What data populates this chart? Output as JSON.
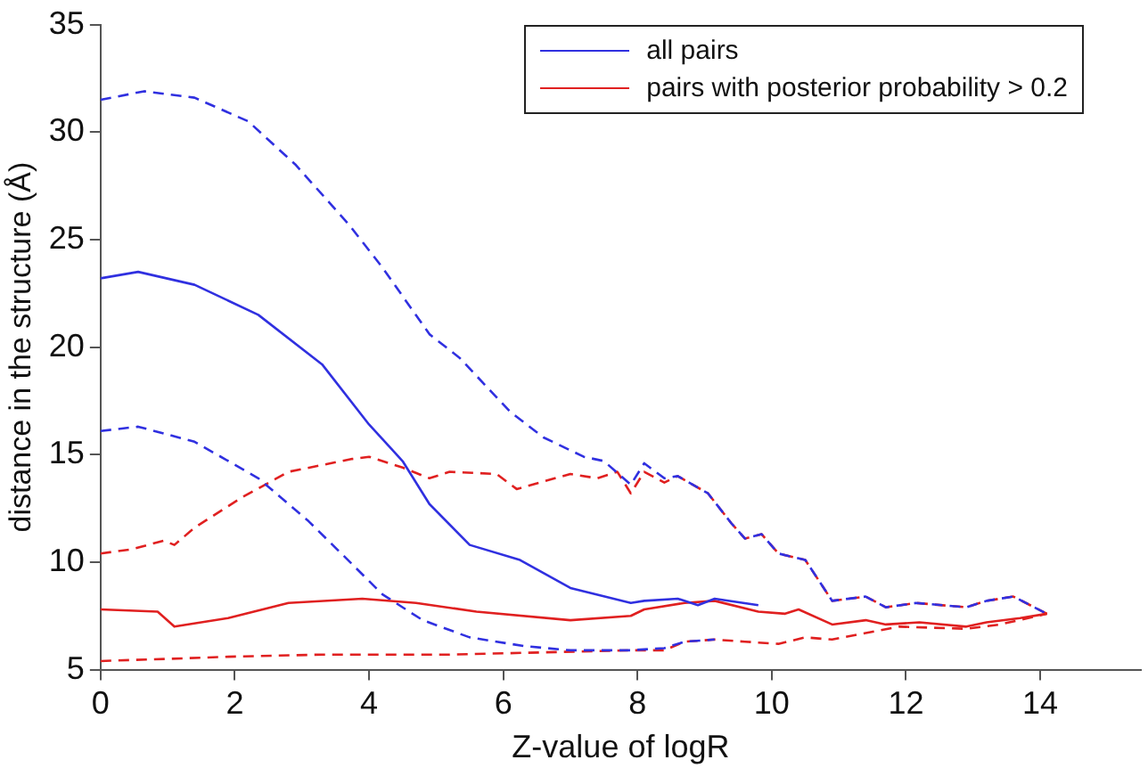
{
  "chart_data": {
    "type": "line",
    "xlabel": "Z-value of logR",
    "ylabel": "distance in the structure (Å)",
    "xlim": [
      0,
      15.5
    ],
    "ylim": [
      5,
      35
    ],
    "xticks": [
      0,
      2,
      4,
      6,
      8,
      10,
      12,
      14
    ],
    "yticks": [
      5,
      10,
      15,
      20,
      25,
      30,
      35
    ],
    "grid": false,
    "legend": "top right",
    "marker": "none",
    "series": [
      {
        "name": "all pairs",
        "color": "#3030e0",
        "line_style": "solid",
        "x": [
          0,
          0.56,
          1.4,
          2.35,
          3.3,
          4.0,
          4.5,
          4.9,
          5.5,
          6.25,
          7.0,
          7.9,
          8.1,
          8.6,
          8.9,
          9.15,
          9.8
        ],
        "values": [
          23.2,
          23.5,
          22.9,
          21.5,
          19.2,
          16.4,
          14.7,
          12.7,
          10.8,
          10.1,
          8.8,
          8.1,
          8.2,
          8.3,
          8.0,
          8.3,
          8.0
        ]
      },
      {
        "name": "pairs with posterior probability > 0.2",
        "color": "#e02020",
        "line_style": "solid",
        "x": [
          0,
          0.85,
          1.1,
          1.9,
          2.8,
          3.9,
          4.7,
          5.6,
          7.0,
          7.9,
          8.1,
          8.7,
          9.15,
          9.8,
          10.2,
          10.4,
          10.9,
          11.4,
          11.7,
          12.2,
          12.9,
          13.2,
          13.7,
          14.1
        ],
        "values": [
          7.8,
          7.7,
          7.0,
          7.4,
          8.1,
          8.3,
          8.1,
          7.7,
          7.3,
          7.5,
          7.8,
          8.1,
          8.2,
          7.7,
          7.6,
          7.8,
          7.1,
          7.3,
          7.1,
          7.2,
          7.0,
          7.2,
          7.4,
          7.6
        ]
      },
      {
        "color": "#3030e0",
        "line_style": "dashed",
        "x": [
          0,
          0.65,
          1.4,
          2.2,
          2.9,
          3.7,
          4.2,
          4.9,
          5.35,
          6.1,
          6.6,
          7.2,
          7.5,
          7.9,
          8.1,
          8.4,
          8.6,
          9.05,
          9.4,
          9.6,
          9.85,
          10.1,
          10.5,
          10.9,
          11.4,
          11.7,
          12.15,
          12.9,
          13.2,
          13.6,
          14.1
        ],
        "values": [
          31.5,
          31.9,
          31.6,
          30.5,
          28.5,
          25.7,
          23.7,
          20.6,
          19.5,
          17.0,
          15.8,
          14.9,
          14.7,
          13.6,
          14.6,
          13.9,
          14.0,
          13.2,
          11.8,
          11.1,
          11.3,
          10.4,
          10.1,
          8.2,
          8.4,
          7.9,
          8.1,
          7.9,
          8.2,
          8.4,
          7.6
        ]
      },
      {
        "color": "#3030e0",
        "line_style": "dashed",
        "x": [
          0,
          0.56,
          1.4,
          2.35,
          3.1,
          3.75,
          4.2,
          4.8,
          5.5,
          6.3,
          7.0,
          7.9,
          8.4,
          8.7,
          9.15
        ],
        "values": [
          16.1,
          16.3,
          15.6,
          13.9,
          11.9,
          9.9,
          8.5,
          7.3,
          6.5,
          6.1,
          5.9,
          5.9,
          6.0,
          6.3,
          6.4
        ]
      },
      {
        "color": "#e02020",
        "line_style": "dashed",
        "x": [
          0,
          0.47,
          0.94,
          1.1,
          1.4,
          2.1,
          2.8,
          3.75,
          4.0,
          4.5,
          4.9,
          5.2,
          5.9,
          6.2,
          7.0,
          7.4,
          7.7,
          7.9,
          8.1,
          8.4,
          8.6,
          9.05,
          9.4,
          9.6,
          9.85,
          10.1,
          10.5,
          10.9,
          11.4,
          11.7,
          12.15,
          12.9,
          13.2,
          13.6,
          14.1
        ],
        "values": [
          10.4,
          10.6,
          11.0,
          10.8,
          11.6,
          13.0,
          14.2,
          14.8,
          14.9,
          14.4,
          13.9,
          14.2,
          14.1,
          13.4,
          14.1,
          13.9,
          14.2,
          13.2,
          14.2,
          13.7,
          14.0,
          13.2,
          11.8,
          11.1,
          11.3,
          10.4,
          10.1,
          8.2,
          8.4,
          7.9,
          8.1,
          7.9,
          8.2,
          8.4,
          7.6
        ]
      },
      {
        "color": "#e02020",
        "line_style": "dashed",
        "x": [
          0,
          1.0,
          1.9,
          3.3,
          5.2,
          7.9,
          8.4,
          8.7,
          9.15,
          9.6,
          10.1,
          10.5,
          10.9,
          11.4,
          11.9,
          12.9,
          13.4,
          14.1
        ],
        "values": [
          5.4,
          5.5,
          5.6,
          5.7,
          5.7,
          5.9,
          5.9,
          6.3,
          6.4,
          6.3,
          6.2,
          6.5,
          6.4,
          6.7,
          7.0,
          6.9,
          7.1,
          7.6
        ]
      }
    ]
  }
}
